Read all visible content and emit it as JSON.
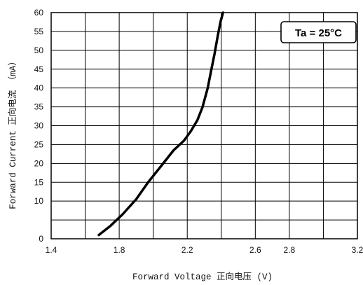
{
  "chart_data": {
    "type": "line",
    "xlabel": "Forward Voltage 正向电压  (V)",
    "ylabel": "Forward Current 正向电流 （mA）",
    "xlim": [
      1.4,
      3.2
    ],
    "ylim": [
      0,
      60
    ],
    "x_ticks": [
      "1.4",
      "1.8",
      "2.2",
      "2.6",
      "2.8",
      "3.2"
    ],
    "x_tick_values": [
      1.4,
      1.8,
      2.2,
      2.6,
      2.8,
      3.2
    ],
    "y_ticks": [
      "0",
      "10",
      "15",
      "20",
      "25",
      "30",
      "35",
      "40",
      "45",
      "50",
      "55",
      "60"
    ],
    "y_tick_values": [
      0,
      10,
      15,
      20,
      25,
      30,
      35,
      40,
      45,
      50,
      55,
      60
    ],
    "grid": true,
    "annotation": "Ta = 25°C",
    "annotation_position": "top-right",
    "series": [
      {
        "x": [
          1.68,
          1.75,
          1.82,
          1.9,
          1.97,
          2.05,
          2.12,
          2.18,
          2.22,
          2.26,
          2.29,
          2.32,
          2.34,
          2.36,
          2.38,
          2.395,
          2.41
        ],
        "y": [
          1,
          3.5,
          6.5,
          10.5,
          15,
          19.5,
          23.5,
          26,
          28.5,
          31.5,
          35,
          40,
          44.5,
          49,
          54,
          57.5,
          60
        ]
      }
    ]
  }
}
